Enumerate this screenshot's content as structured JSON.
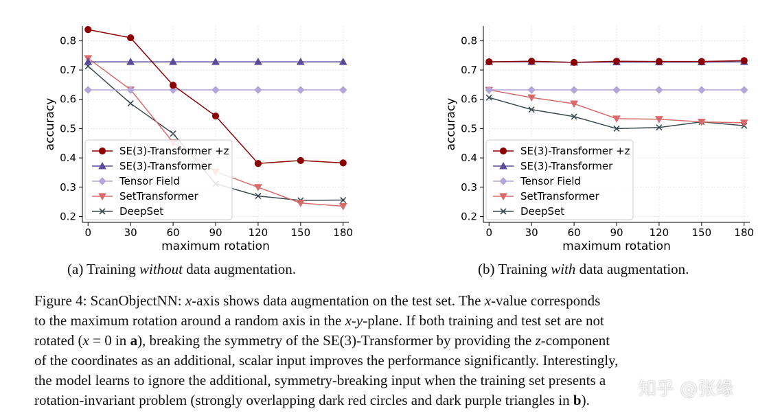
{
  "chart_data": [
    {
      "type": "line",
      "xlabel": "maximum rotation",
      "ylabel": "accuracy",
      "x": [
        0,
        30,
        60,
        90,
        120,
        150,
        180
      ],
      "xticks": [
        "0",
        "30",
        "60",
        "90",
        "120",
        "150",
        "180"
      ],
      "yticks": [
        "0.2",
        "0.3",
        "0.4",
        "0.5",
        "0.6",
        "0.7",
        "0.8"
      ],
      "ylim": [
        0.18,
        0.85
      ],
      "xlim": [
        -4,
        184
      ],
      "grid": true,
      "legend": "lower-left",
      "series": [
        {
          "name": "SE(3)-Transformer +z",
          "color": "#8b0000",
          "marker": "circle",
          "values": [
            0.838,
            0.81,
            0.648,
            0.543,
            0.381,
            0.391,
            0.383
          ]
        },
        {
          "name": "SE(3)-Transformer",
          "color": "#5a4a9a",
          "marker": "triangle-up",
          "values": [
            0.728,
            0.728,
            0.728,
            0.728,
            0.728,
            0.728,
            0.728
          ]
        },
        {
          "name": "Tensor Field",
          "color": "#b3a6d9",
          "marker": "diamond",
          "values": [
            0.632,
            0.632,
            0.632,
            0.632,
            0.632,
            0.632,
            0.632
          ]
        },
        {
          "name": "SetTransformer",
          "color": "#d96a6a",
          "marker": "triangle-down",
          "values": [
            0.74,
            0.633,
            0.453,
            0.353,
            0.3,
            0.246,
            0.235
          ]
        },
        {
          "name": "DeepSet",
          "color": "#3c4a4f",
          "marker": "x",
          "values": [
            0.713,
            0.586,
            0.483,
            0.312,
            0.27,
            0.255,
            0.256
          ]
        }
      ]
    },
    {
      "type": "line",
      "xlabel": "maximum rotation",
      "ylabel": "accuracy",
      "x": [
        0,
        30,
        60,
        90,
        120,
        150,
        180
      ],
      "xticks": [
        "0",
        "30",
        "60",
        "90",
        "120",
        "150",
        "180"
      ],
      "yticks": [
        "0.2",
        "0.3",
        "0.4",
        "0.5",
        "0.6",
        "0.7",
        "0.8"
      ],
      "ylim": [
        0.18,
        0.85
      ],
      "xlim": [
        -4,
        184
      ],
      "grid": true,
      "legend": "lower-left",
      "series": [
        {
          "name": "SE(3)-Transformer +z",
          "color": "#8b0000",
          "marker": "circle",
          "values": [
            0.728,
            0.73,
            0.726,
            0.73,
            0.729,
            0.729,
            0.732
          ]
        },
        {
          "name": "SE(3)-Transformer",
          "color": "#5a4a9a",
          "marker": "triangle-up",
          "values": [
            0.728,
            0.728,
            0.726,
            0.727,
            0.727,
            0.727,
            0.728
          ]
        },
        {
          "name": "Tensor Field",
          "color": "#b3a6d9",
          "marker": "diamond",
          "values": [
            0.632,
            0.632,
            0.632,
            0.632,
            0.632,
            0.632,
            0.632
          ]
        },
        {
          "name": "SetTransformer",
          "color": "#d96a6a",
          "marker": "triangle-down",
          "values": [
            0.632,
            0.606,
            0.585,
            0.534,
            0.532,
            0.523,
            0.52
          ]
        },
        {
          "name": "DeepSet",
          "color": "#3c4a4f",
          "marker": "x",
          "values": [
            0.606,
            0.565,
            0.541,
            0.5,
            0.504,
            0.523,
            0.51
          ]
        }
      ]
    }
  ],
  "subcaptions": {
    "a": {
      "pre": "(a) Training ",
      "em": "without",
      "post": " data augmentation."
    },
    "b": {
      "pre": "(b) Training ",
      "em": "with",
      "post": " data augmentation."
    }
  },
  "figure_caption": {
    "l1a": "Figure 4: ScanObjectNN: ",
    "l1x": "x",
    "l1b": "-axis shows data augmentation on the test set. The ",
    "l1x2": "x",
    "l1c": "-value corresponds",
    "l2a": "to the maximum rotation around a random axis in the ",
    "l2x": "x",
    "l2b": "-",
    "l2y": "y",
    "l2c": "-plane. If both training and test set are not",
    "l3a": "rotated (",
    "l3x": "x",
    "l3b": " = 0 in ",
    "l3bold": "a",
    "l3c": "), breaking the symmetry of the SE(3)-Transformer by providing the ",
    "l3z": "z",
    "l3d": "-component",
    "l4": "of the coordinates as an additional, scalar input improves the performance significantly. Interestingly,",
    "l5": "the model learns to ignore the additional, symmetry-breaking input when the training set presents a",
    "l6a": "rotation-invariant problem (strongly overlapping dark red circles and dark purple triangles in ",
    "l6bold": "b",
    "l6b": ")."
  },
  "watermark": "知乎 @张缘"
}
